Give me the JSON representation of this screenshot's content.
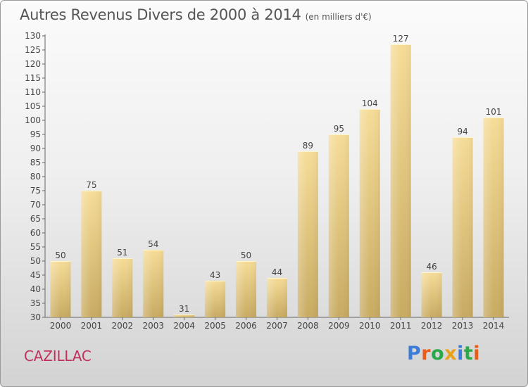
{
  "header": {
    "title": "Autres Revenus Divers de 2000 à 2014",
    "unit": "(en milliers d'€)"
  },
  "footer": {
    "place": "CAZILLAC",
    "logo": "Proxiti"
  },
  "colors": {
    "bar_top": "#f6dc97",
    "bar_bottom": "#c8ab62",
    "place_text": "#c0315c",
    "logo_letters": [
      "#3b7dd8",
      "#e85d1a",
      "#2aa84a",
      "#e8a21a",
      "#3b7dd8",
      "#2aa84a",
      "#e85d1a"
    ]
  },
  "chart_data": {
    "type": "bar",
    "title": "Autres Revenus Divers de 2000 à 2014",
    "subtitle": "(en milliers d'€)",
    "xlabel": "",
    "ylabel": "",
    "categories": [
      "2000",
      "2001",
      "2002",
      "2003",
      "2004",
      "2005",
      "2006",
      "2007",
      "2008",
      "2009",
      "2010",
      "2011",
      "2012",
      "2013",
      "2014"
    ],
    "values": [
      50,
      75,
      51,
      54,
      31,
      43,
      50,
      44,
      89,
      95,
      104,
      127,
      46,
      94,
      101
    ],
    "ylim": [
      30,
      130
    ],
    "ytick_step": 5,
    "grid": false,
    "data_labels": true,
    "legend": "none"
  }
}
